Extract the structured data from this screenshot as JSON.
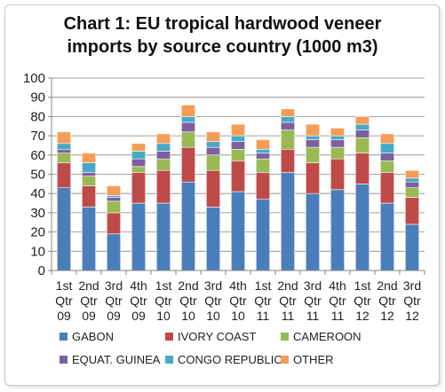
{
  "chart_data": {
    "type": "bar",
    "stacked": true,
    "title_line1": "Chart 1: EU tropical hardwood veneer",
    "title_line2": "imports by source country (1000 m3)",
    "xlabel": "",
    "ylabel": "",
    "ylim": [
      0,
      100
    ],
    "yticks": [
      "0",
      "10",
      "20",
      "30",
      "40",
      "50",
      "60",
      "70",
      "80",
      "90",
      "100"
    ],
    "grid": true,
    "legend_position": "bottom",
    "categories": [
      [
        "1st",
        "Qtr",
        "09"
      ],
      [
        "2nd",
        "Qtr",
        "09"
      ],
      [
        "3rd",
        "Qtr",
        "09"
      ],
      [
        "4th",
        "Qtr",
        "09"
      ],
      [
        "1st",
        "Qtr",
        "10"
      ],
      [
        "2nd",
        "Qtr",
        "10"
      ],
      [
        "3rd",
        "Qtr",
        "10"
      ],
      [
        "4th",
        "Qtr",
        "10"
      ],
      [
        "1st",
        "Qtr",
        "11"
      ],
      [
        "2nd",
        "Qtr",
        "11"
      ],
      [
        "3rd",
        "Qtr",
        "11"
      ],
      [
        "4th",
        "Qtr",
        "11"
      ],
      [
        "1st",
        "Qtr",
        "12"
      ],
      [
        "2nd",
        "Qtr",
        "12"
      ],
      [
        "3rd",
        "Qtr",
        "12"
      ]
    ],
    "series": [
      {
        "name": "GABON",
        "color": "#4a7ebb",
        "values": [
          43,
          33,
          19,
          35,
          35,
          46,
          33,
          41,
          37,
          51,
          40,
          42,
          45,
          35,
          24
        ]
      },
      {
        "name": "IVORY COAST",
        "color": "#be4b48",
        "values": [
          13,
          11,
          11,
          16,
          17,
          18,
          19,
          16,
          14,
          12,
          16,
          16,
          16,
          16,
          14
        ]
      },
      {
        "name": "CAMEROON",
        "color": "#98b954",
        "values": [
          5,
          5,
          6,
          3,
          6,
          8,
          8,
          6,
          7,
          10,
          8,
          6,
          8,
          6,
          5
        ]
      },
      {
        "name": "EQUAT. GUINEA",
        "color": "#7d60a0",
        "values": [
          2,
          2,
          2,
          4,
          4,
          5,
          4,
          4,
          3,
          4,
          4,
          4,
          4,
          4,
          3
        ]
      },
      {
        "name": "CONGO REPUBLIC",
        "color": "#46aac5",
        "values": [
          3,
          5,
          1,
          4,
          4,
          3,
          3,
          3,
          2,
          3,
          2,
          2,
          3,
          5,
          2
        ]
      },
      {
        "name": "OTHER",
        "color": "#f59d56",
        "values": [
          6,
          5,
          5,
          4,
          5,
          6,
          5,
          6,
          5,
          4,
          6,
          4,
          4,
          5,
          4
        ]
      }
    ]
  }
}
